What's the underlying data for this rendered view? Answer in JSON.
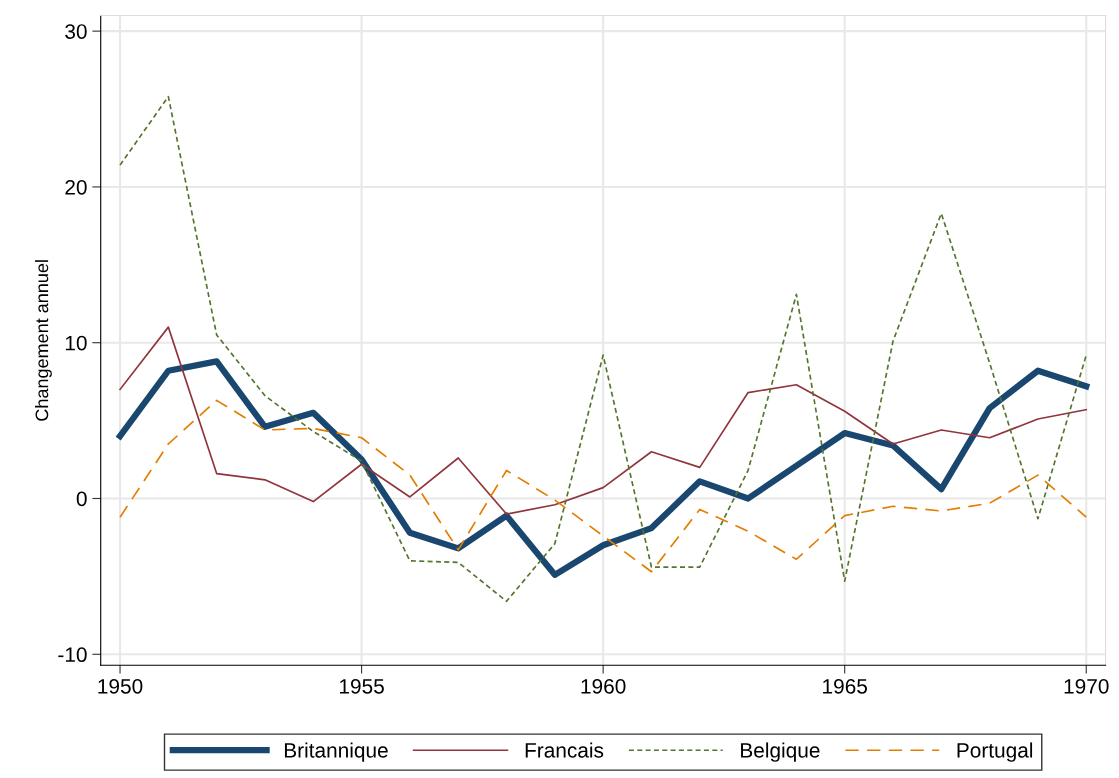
{
  "chart_data": {
    "type": "line",
    "ylabel": "Changement annuel",
    "x": [
      1950,
      1951,
      1952,
      1953,
      1954,
      1955,
      1956,
      1957,
      1958,
      1959,
      1960,
      1961,
      1962,
      1963,
      1964,
      1965,
      1966,
      1967,
      1968,
      1969,
      1970
    ],
    "series": [
      {
        "name": "Britannique",
        "color": "#1a476f",
        "line_style": "solid",
        "values": [
          4.0,
          8.2,
          8.8,
          4.6,
          5.5,
          2.5,
          -2.2,
          -3.2,
          -1.1,
          -4.9,
          -3.0,
          -1.9,
          1.1,
          0.0,
          2.1,
          4.2,
          3.4,
          0.6,
          5.8,
          8.2,
          7.2
        ]
      },
      {
        "name": "Francais",
        "color": "#90353b",
        "line_style": "solid",
        "values": [
          7.0,
          11.0,
          1.6,
          1.2,
          -0.2,
          2.2,
          0.1,
          2.6,
          -1.0,
          -0.4,
          0.7,
          3.0,
          2.0,
          6.8,
          7.3,
          5.6,
          3.5,
          4.4,
          3.9,
          5.1,
          5.7
        ]
      },
      {
        "name": "Belgique",
        "color": "#55752f",
        "line_style": "dotted",
        "values": [
          21.4,
          25.8,
          10.5,
          6.6,
          4.3,
          2.4,
          -4.0,
          -4.1,
          -6.6,
          -2.9,
          9.2,
          -4.4,
          -4.4,
          1.8,
          13.1,
          -5.3,
          10.1,
          18.3,
          8.7,
          -1.3,
          9.2
        ]
      },
      {
        "name": "Portugal",
        "color": "#e37e00",
        "line_style": "dashed",
        "values": [
          -1.2,
          3.5,
          6.3,
          4.4,
          4.5,
          3.9,
          1.5,
          -3.3,
          1.8,
          -0.1,
          -2.4,
          -4.7,
          -0.7,
          -2.1,
          -3.9,
          -1.1,
          -0.5,
          -0.8,
          -0.3,
          1.5,
          -1.2
        ]
      }
    ],
    "xlim": [
      1949.6,
      1970.4
    ],
    "xticks": [
      1950,
      1955,
      1960,
      1965,
      1970
    ],
    "ylim": [
      -10.7,
      31
    ],
    "yticks": [
      -10,
      0,
      10,
      20,
      30
    ],
    "grid": true,
    "legend": "bottom",
    "marker": "none"
  }
}
